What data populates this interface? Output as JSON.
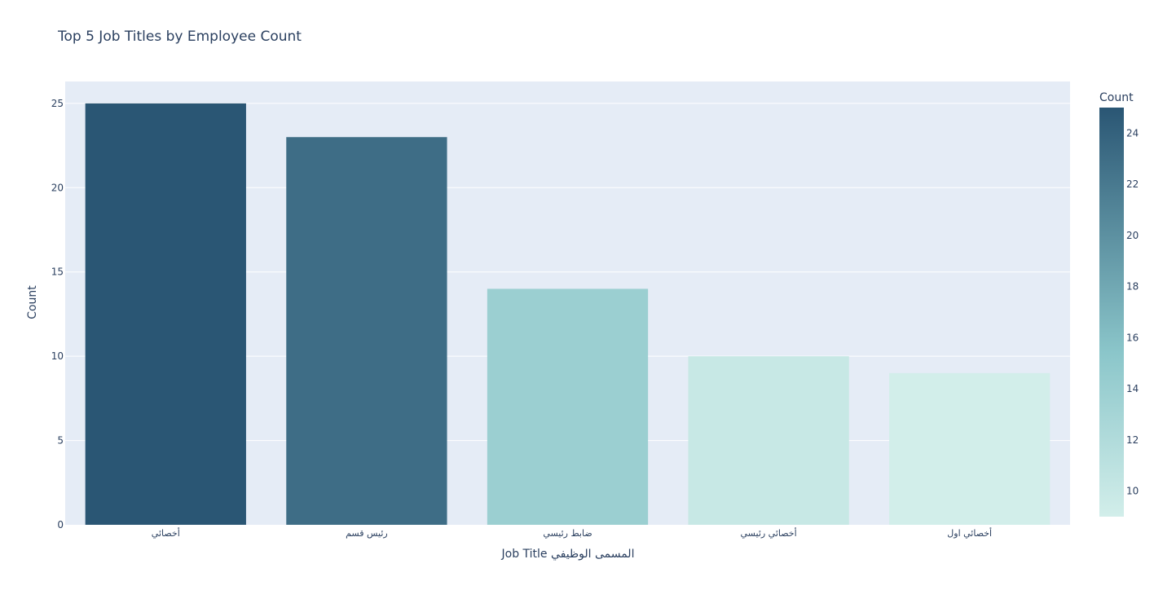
{
  "chart_data": {
    "type": "bar",
    "title": "Top 5 Job Titles by Employee Count",
    "xlabel": "Job Title   المسمى الوظيفي",
    "ylabel": "Count",
    "categories": [
      "أخصائي",
      "رئيس قسم",
      "ضابط رئيسي",
      "أخصائي رئيسي",
      "أخصائي اول"
    ],
    "values": [
      25,
      23,
      14,
      10,
      9
    ],
    "ylim": [
      0,
      26.3
    ],
    "yticks": [
      "0",
      "5",
      "10",
      "15",
      "20",
      "25"
    ],
    "grid": true,
    "colorbar": {
      "title": "Count",
      "range": [
        9,
        25
      ],
      "ticks": [
        "10",
        "12",
        "14",
        "16",
        "18",
        "20",
        "22",
        "24"
      ]
    },
    "colors": {
      "plot_bg": "#e5ecf6",
      "text": "#2a3f5f",
      "scale_low": "#d2eeea",
      "scale_mid": "#8bc6ca",
      "scale_high": "#2a5674"
    }
  }
}
